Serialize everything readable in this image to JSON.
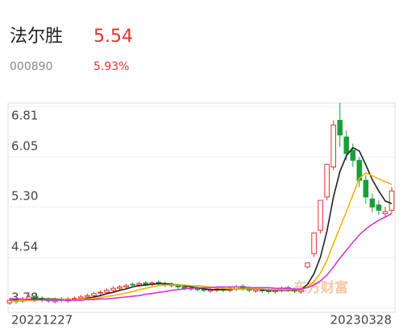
{
  "header": {
    "name": "法尔胜",
    "price": "5.54",
    "code": "000890",
    "change": "5.93%"
  },
  "chart_data": {
    "type": "candlestick",
    "watermark": "东方财富",
    "categories": [
      "20221227",
      null,
      null,
      null,
      null,
      null,
      null,
      null,
      null,
      null,
      null,
      null,
      null,
      null,
      null,
      null,
      null,
      null,
      null,
      null,
      null,
      null,
      null,
      null,
      null,
      null,
      null,
      null,
      null,
      null,
      null,
      null,
      null,
      null,
      null,
      null,
      null,
      null,
      null,
      null,
      null,
      null,
      null,
      null,
      null,
      null,
      null,
      null,
      null,
      null,
      null,
      null,
      null,
      null,
      null,
      null,
      null,
      null,
      null,
      "20230328"
    ],
    "ylim": [
      3.72,
      6.86
    ],
    "yticks": [
      6.81,
      6.05,
      {
        "value": 5.3,
        "label": "5.30"
      },
      4.54,
      3.78
    ],
    "grid": true,
    "up_color": "#e8312f",
    "down_color": "#1a9e3a",
    "open": [
      3.86,
      3.91,
      3.89,
      3.92,
      3.96,
      3.93,
      3.91,
      3.88,
      3.92,
      3.89,
      3.92,
      3.93,
      3.95,
      3.97,
      4.01,
      4.02,
      4.05,
      4.08,
      4.1,
      4.14,
      4.13,
      4.16,
      4.14,
      4.17,
      4.15,
      4.14,
      4.12,
      4.1,
      4.08,
      4.08,
      4.07,
      4.04,
      4.05,
      4.08,
      4.05,
      4.07,
      4.11,
      4.08,
      4.04,
      4.07,
      4.05,
      4.03,
      4.05,
      4.09,
      4.06,
      4.03,
      4.4,
      4.6,
      4.95,
      5.45,
      5.9,
      6.6,
      6.35,
      6.15,
      6.0,
      5.7,
      5.42,
      5.33,
      5.2,
      5.25
    ],
    "high": [
      3.93,
      3.94,
      3.95,
      3.98,
      3.99,
      3.96,
      3.94,
      3.94,
      3.95,
      3.95,
      3.96,
      3.98,
      4.0,
      4.03,
      4.05,
      4.08,
      4.11,
      4.13,
      4.15,
      4.17,
      4.18,
      4.19,
      4.19,
      4.2,
      4.18,
      4.17,
      4.15,
      4.13,
      4.11,
      4.11,
      4.1,
      4.09,
      4.1,
      4.11,
      4.11,
      4.13,
      4.14,
      4.11,
      4.09,
      4.1,
      4.08,
      4.08,
      4.11,
      4.12,
      4.09,
      4.08,
      4.46,
      4.91,
      5.4,
      5.94,
      6.6,
      6.86,
      6.45,
      6.25,
      6.05,
      5.78,
      5.5,
      5.4,
      5.3,
      5.6
    ],
    "low": [
      3.83,
      3.85,
      3.86,
      3.89,
      3.9,
      3.87,
      3.86,
      3.85,
      3.87,
      3.86,
      3.89,
      3.9,
      3.92,
      3.94,
      3.98,
      3.99,
      4.02,
      4.05,
      4.07,
      4.1,
      4.1,
      4.11,
      4.11,
      4.12,
      4.1,
      4.09,
      4.07,
      4.05,
      4.04,
      4.03,
      4.02,
      4.01,
      4.02,
      4.02,
      4.02,
      4.04,
      4.04,
      4.02,
      4.01,
      4.01,
      4.0,
      4.0,
      4.02,
      4.03,
      4.01,
      4.0,
      4.38,
      4.55,
      4.9,
      5.4,
      5.85,
      6.2,
      6.0,
      5.9,
      5.6,
      5.35,
      5.22,
      5.18,
      5.15,
      5.2
    ],
    "close": [
      3.9,
      3.88,
      3.92,
      3.95,
      3.93,
      3.9,
      3.89,
      3.91,
      3.9,
      3.92,
      3.93,
      3.95,
      3.97,
      4.0,
      4.02,
      4.05,
      4.08,
      4.1,
      4.12,
      4.13,
      4.15,
      4.14,
      4.16,
      4.15,
      4.13,
      4.12,
      4.1,
      4.08,
      4.07,
      4.06,
      4.05,
      4.06,
      4.07,
      4.05,
      4.08,
      4.1,
      4.07,
      4.05,
      4.06,
      4.04,
      4.03,
      4.05,
      4.08,
      4.06,
      4.04,
      4.05,
      4.46,
      4.91,
      5.4,
      5.94,
      6.53,
      6.38,
      6.1,
      6.0,
      5.7,
      5.45,
      5.3,
      5.25,
      5.23,
      5.54
    ],
    "series": [
      {
        "color": "#222222",
        "values": [
          3.9,
          3.9,
          3.9,
          3.91,
          3.92,
          3.92,
          3.92,
          3.92,
          3.91,
          3.9,
          3.91,
          3.92,
          3.93,
          3.95,
          3.97,
          4.0,
          4.02,
          4.05,
          4.07,
          4.1,
          4.12,
          4.13,
          4.14,
          4.15,
          4.15,
          4.14,
          4.13,
          4.12,
          4.1,
          4.09,
          4.07,
          4.06,
          4.06,
          4.06,
          4.06,
          4.07,
          4.07,
          4.07,
          4.07,
          4.06,
          4.05,
          4.05,
          4.05,
          4.05,
          4.05,
          4.06,
          4.14,
          4.3,
          4.55,
          4.94,
          5.45,
          5.83,
          6.07,
          6.19,
          6.14,
          5.93,
          5.71,
          5.54,
          5.39,
          5.35
        ]
      },
      {
        "color": "#f0b400",
        "values": [
          3.89,
          3.89,
          3.9,
          3.9,
          3.9,
          3.91,
          3.91,
          3.91,
          3.91,
          3.91,
          3.91,
          3.92,
          3.92,
          3.93,
          3.94,
          3.96,
          3.97,
          3.99,
          4.01,
          4.03,
          4.06,
          4.08,
          4.1,
          4.12,
          4.13,
          4.13,
          4.13,
          4.13,
          4.12,
          4.12,
          4.11,
          4.1,
          4.09,
          4.08,
          4.07,
          4.07,
          4.07,
          4.07,
          4.07,
          4.07,
          4.06,
          4.06,
          4.06,
          4.06,
          4.06,
          4.06,
          4.1,
          4.18,
          4.31,
          4.5,
          4.75,
          4.99,
          5.23,
          5.48,
          5.73,
          5.81,
          5.77,
          5.72,
          5.68,
          5.64
        ]
      },
      {
        "color": "#d633d6",
        "values": [
          3.93,
          3.92,
          3.92,
          3.91,
          3.91,
          3.91,
          3.9,
          3.9,
          3.9,
          3.9,
          3.9,
          3.9,
          3.91,
          3.91,
          3.92,
          3.92,
          3.93,
          3.94,
          3.95,
          3.96,
          3.97,
          3.99,
          4.0,
          4.02,
          4.03,
          4.05,
          4.06,
          4.07,
          4.08,
          4.09,
          4.09,
          4.09,
          4.1,
          4.1,
          4.1,
          4.1,
          4.1,
          4.09,
          4.09,
          4.09,
          4.09,
          4.08,
          4.08,
          4.08,
          4.07,
          4.07,
          4.09,
          4.13,
          4.19,
          4.28,
          4.4,
          4.53,
          4.65,
          4.77,
          4.88,
          4.97,
          5.04,
          5.1,
          5.15,
          5.2
        ]
      }
    ]
  }
}
